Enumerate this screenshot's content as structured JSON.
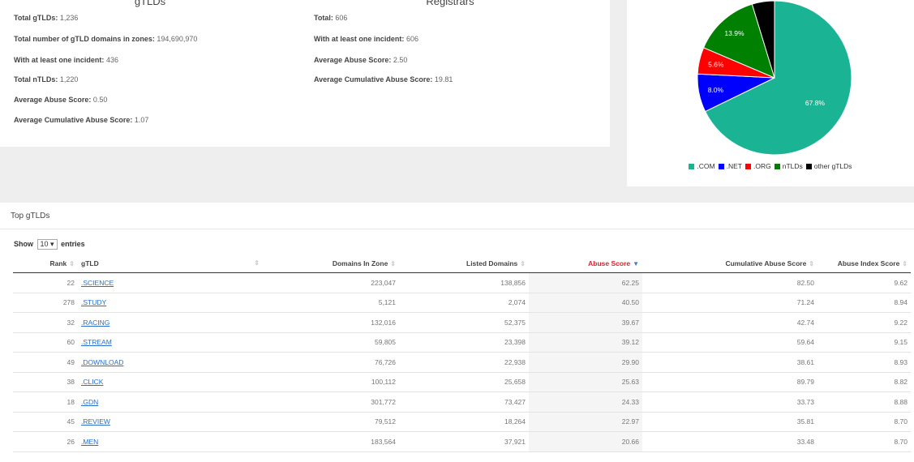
{
  "stats": {
    "gtlds": {
      "heading": "gTLDs",
      "items": [
        {
          "label": "Total gTLDs:",
          "value": "1,236"
        },
        {
          "label": "Total number of gTLD domains in zones:",
          "value": "194,690,970"
        },
        {
          "label": "With at least one incident:",
          "value": "436"
        },
        {
          "label": "Total nTLDs:",
          "value": "1,220"
        },
        {
          "label": "Average Abuse Score:",
          "value": "0.50"
        },
        {
          "label": "Average Cumulative Abuse Score:",
          "value": "1.07"
        }
      ]
    },
    "registrars": {
      "heading": "Registrars",
      "items": [
        {
          "label": "Total:",
          "value": "606"
        },
        {
          "label": "With at least one incident:",
          "value": "606"
        },
        {
          "label": "Average Abuse Score:",
          "value": "2.50"
        },
        {
          "label": "Average Cumulative Abuse Score:",
          "value": "19.81"
        }
      ]
    }
  },
  "chart_data": {
    "type": "pie",
    "title": "",
    "categories": [
      ".COM",
      ".NET",
      ".ORG",
      "nTLDs",
      "other gTLDs"
    ],
    "values": [
      67.8,
      8.0,
      5.6,
      13.9,
      4.7
    ],
    "slice_labels": [
      "67.8%",
      "8.0%",
      "5.6%",
      "13.9%",
      ""
    ],
    "colors": [
      "#1ab394",
      "#0000ff",
      "#ff0000",
      "#008000",
      "#000000"
    ],
    "legend_position": "bottom"
  },
  "table": {
    "title": "Top gTLDs",
    "show_label": "Show",
    "entries_value": "10",
    "entries_label": "entries",
    "columns": [
      "Rank",
      "gTLD",
      "Domains In Zone",
      "Listed Domains",
      "Abuse Score",
      "Cumulative Abuse Score",
      "Abuse Index Score"
    ],
    "sort_icon": "sort-icon",
    "rows": [
      [
        "22",
        ".SCIENCE",
        "223,047",
        "138,856",
        "62.25",
        "82.50",
        "9.62"
      ],
      [
        "278",
        ".STUDY",
        "5,121",
        "2,074",
        "40.50",
        "71.24",
        "8.94"
      ],
      [
        "32",
        ".RACING",
        "132,016",
        "52,375",
        "39.67",
        "42.74",
        "9.22"
      ],
      [
        "60",
        ".STREAM",
        "59,805",
        "23,398",
        "39.12",
        "59.64",
        "9.15"
      ],
      [
        "49",
        ".DOWNLOAD",
        "76,726",
        "22,938",
        "29.90",
        "38.61",
        "8.93"
      ],
      [
        "38",
        ".CLICK",
        "100,112",
        "25,658",
        "25.63",
        "89.79",
        "8.82"
      ],
      [
        "18",
        ".GDN",
        "301,772",
        "73,427",
        "24.33",
        "33.73",
        "8.88"
      ],
      [
        "45",
        ".REVIEW",
        "79,512",
        "18,264",
        "22.97",
        "35.81",
        "8.70"
      ],
      [
        "26",
        ".MEN",
        "183,564",
        "37,921",
        "20.66",
        "33.48",
        "8.70"
      ]
    ]
  }
}
